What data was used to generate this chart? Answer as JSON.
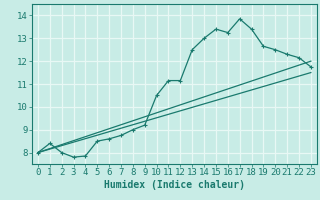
{
  "xlabel": "Humidex (Indice chaleur)",
  "background_color": "#c8ece6",
  "grid_color": "#e8f8f5",
  "line_color": "#1a7a6e",
  "xlim": [
    -0.5,
    23.5
  ],
  "ylim": [
    7.5,
    14.5
  ],
  "xticks": [
    0,
    1,
    2,
    3,
    4,
    5,
    6,
    7,
    8,
    9,
    10,
    11,
    12,
    13,
    14,
    15,
    16,
    17,
    18,
    19,
    20,
    21,
    22,
    23
  ],
  "yticks": [
    8,
    9,
    10,
    11,
    12,
    13,
    14
  ],
  "curve1_x": [
    0,
    1,
    2,
    3,
    4,
    5,
    6,
    7,
    8,
    9,
    10,
    11,
    12,
    13,
    14,
    15,
    16,
    17,
    18,
    19,
    20,
    21,
    22,
    23
  ],
  "curve1_y": [
    8.0,
    8.4,
    8.0,
    7.8,
    7.85,
    8.5,
    8.6,
    8.75,
    9.0,
    9.2,
    10.5,
    11.15,
    11.15,
    12.5,
    13.0,
    13.4,
    13.25,
    13.85,
    13.4,
    12.65,
    12.5,
    12.3,
    12.15,
    11.75
  ],
  "ref_line1_x": [
    0,
    23
  ],
  "ref_line1_y": [
    8.0,
    12.0
  ],
  "ref_line2_x": [
    0,
    23
  ],
  "ref_line2_y": [
    8.0,
    11.5
  ],
  "font_size": 7,
  "tick_font_size": 6.5
}
